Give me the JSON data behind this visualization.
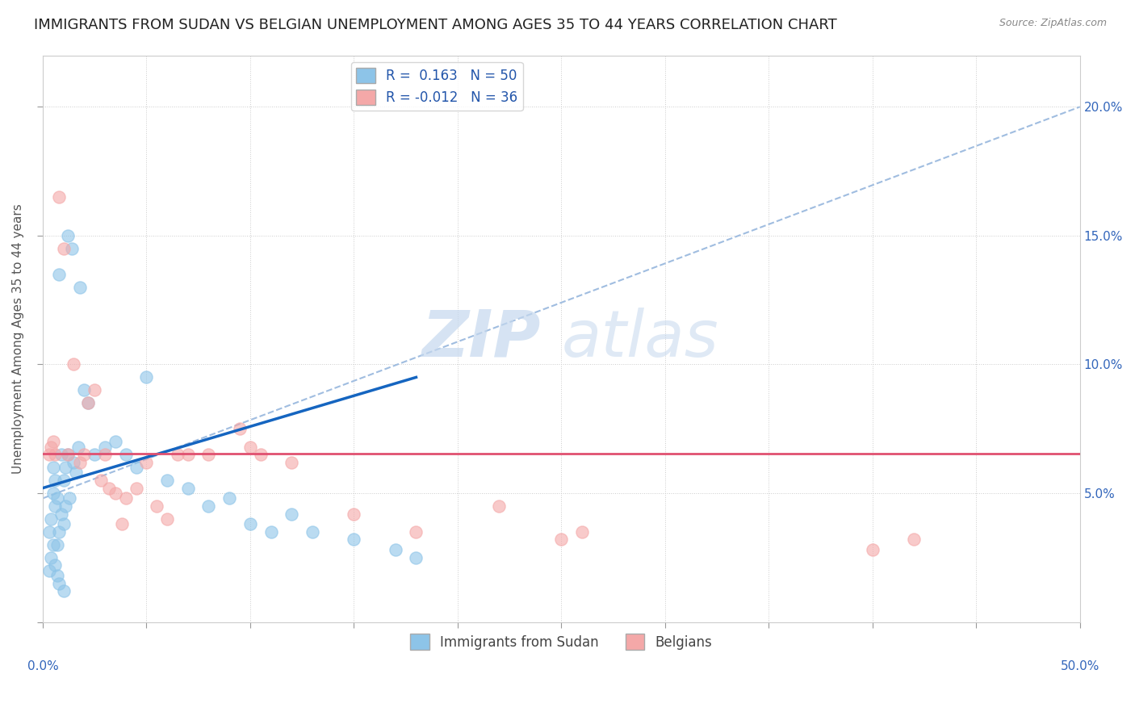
{
  "title": "IMMIGRANTS FROM SUDAN VS BELGIAN UNEMPLOYMENT AMONG AGES 35 TO 44 YEARS CORRELATION CHART",
  "source": "Source: ZipAtlas.com",
  "ylabel": "Unemployment Among Ages 35 to 44 years",
  "legend_label1": "Immigrants from Sudan",
  "legend_label2": "Belgians",
  "r1": "0.163",
  "n1": "50",
  "r2": "-0.012",
  "n2": "36",
  "watermark_zip": "ZIP",
  "watermark_atlas": "atlas",
  "blue_scatter_x": [
    0.3,
    0.4,
    0.5,
    0.5,
    0.6,
    0.6,
    0.7,
    0.7,
    0.8,
    0.8,
    0.9,
    0.9,
    1.0,
    1.0,
    1.1,
    1.1,
    1.2,
    1.2,
    1.3,
    1.4,
    1.5,
    1.6,
    1.7,
    1.8,
    2.0,
    2.2,
    2.5,
    3.0,
    3.5,
    4.0,
    4.5,
    5.0,
    6.0,
    7.0,
    8.0,
    9.0,
    10.0,
    11.0,
    12.0,
    13.0,
    15.0,
    17.0,
    18.0,
    0.3,
    0.4,
    0.5,
    0.6,
    0.7,
    0.8,
    1.0
  ],
  "blue_scatter_y": [
    3.5,
    4.0,
    5.0,
    6.0,
    4.5,
    5.5,
    3.0,
    4.8,
    3.5,
    13.5,
    4.2,
    6.5,
    3.8,
    5.5,
    4.5,
    6.0,
    6.5,
    15.0,
    4.8,
    14.5,
    6.2,
    5.8,
    6.8,
    13.0,
    9.0,
    8.5,
    6.5,
    6.8,
    7.0,
    6.5,
    6.0,
    9.5,
    5.5,
    5.2,
    4.5,
    4.8,
    3.8,
    3.5,
    4.2,
    3.5,
    3.2,
    2.8,
    2.5,
    2.0,
    2.5,
    3.0,
    2.2,
    1.8,
    1.5,
    1.2
  ],
  "pink_scatter_x": [
    0.3,
    0.5,
    0.8,
    1.0,
    1.5,
    2.0,
    2.5,
    3.0,
    3.5,
    4.0,
    4.5,
    5.0,
    5.5,
    6.0,
    7.0,
    8.0,
    9.5,
    10.0,
    12.0,
    15.0,
    18.0,
    22.0,
    25.0,
    26.0,
    40.0,
    42.0,
    1.2,
    1.8,
    2.2,
    2.8,
    3.2,
    3.8,
    10.5,
    6.5,
    0.6,
    0.4
  ],
  "pink_scatter_y": [
    6.5,
    7.0,
    16.5,
    14.5,
    10.0,
    6.5,
    9.0,
    6.5,
    5.0,
    4.8,
    5.2,
    6.2,
    4.5,
    4.0,
    6.5,
    6.5,
    7.5,
    6.8,
    6.2,
    4.2,
    3.5,
    4.5,
    3.2,
    3.5,
    2.8,
    3.2,
    6.5,
    6.2,
    8.5,
    5.5,
    5.2,
    3.8,
    6.5,
    6.5,
    6.5,
    6.8
  ],
  "blue_trend_x0": 0.0,
  "blue_trend_y0": 5.2,
  "blue_trend_x1": 18.0,
  "blue_trend_y1": 9.5,
  "pink_trend_x0": 0.0,
  "pink_trend_y0": 6.55,
  "pink_trend_x1": 50.0,
  "pink_trend_y1": 6.55,
  "gray_dashed_x0": 0.0,
  "gray_dashed_y0": 4.8,
  "gray_dashed_x1": 50.0,
  "gray_dashed_y1": 20.0,
  "blue_color": "#8dc4e8",
  "pink_color": "#f4a8a8",
  "blue_line_color": "#1565c0",
  "pink_line_color": "#e05070",
  "gray_dashed_color": "#a0bde0",
  "background_color": "#ffffff",
  "xlim": [
    0,
    50
  ],
  "ylim": [
    0,
    22
  ],
  "yticks": [
    0,
    5,
    10,
    15,
    20
  ],
  "ytick_labels_right": [
    "",
    "5.0%",
    "10.0%",
    "15.0%",
    "20.0%"
  ],
  "xticks": [
    0,
    5,
    10,
    15,
    20,
    25,
    30,
    35,
    40,
    45,
    50
  ],
  "title_fontsize": 13,
  "axis_label_fontsize": 11,
  "tick_label_fontsize": 11,
  "legend_fontsize": 12,
  "source_fontsize": 9
}
